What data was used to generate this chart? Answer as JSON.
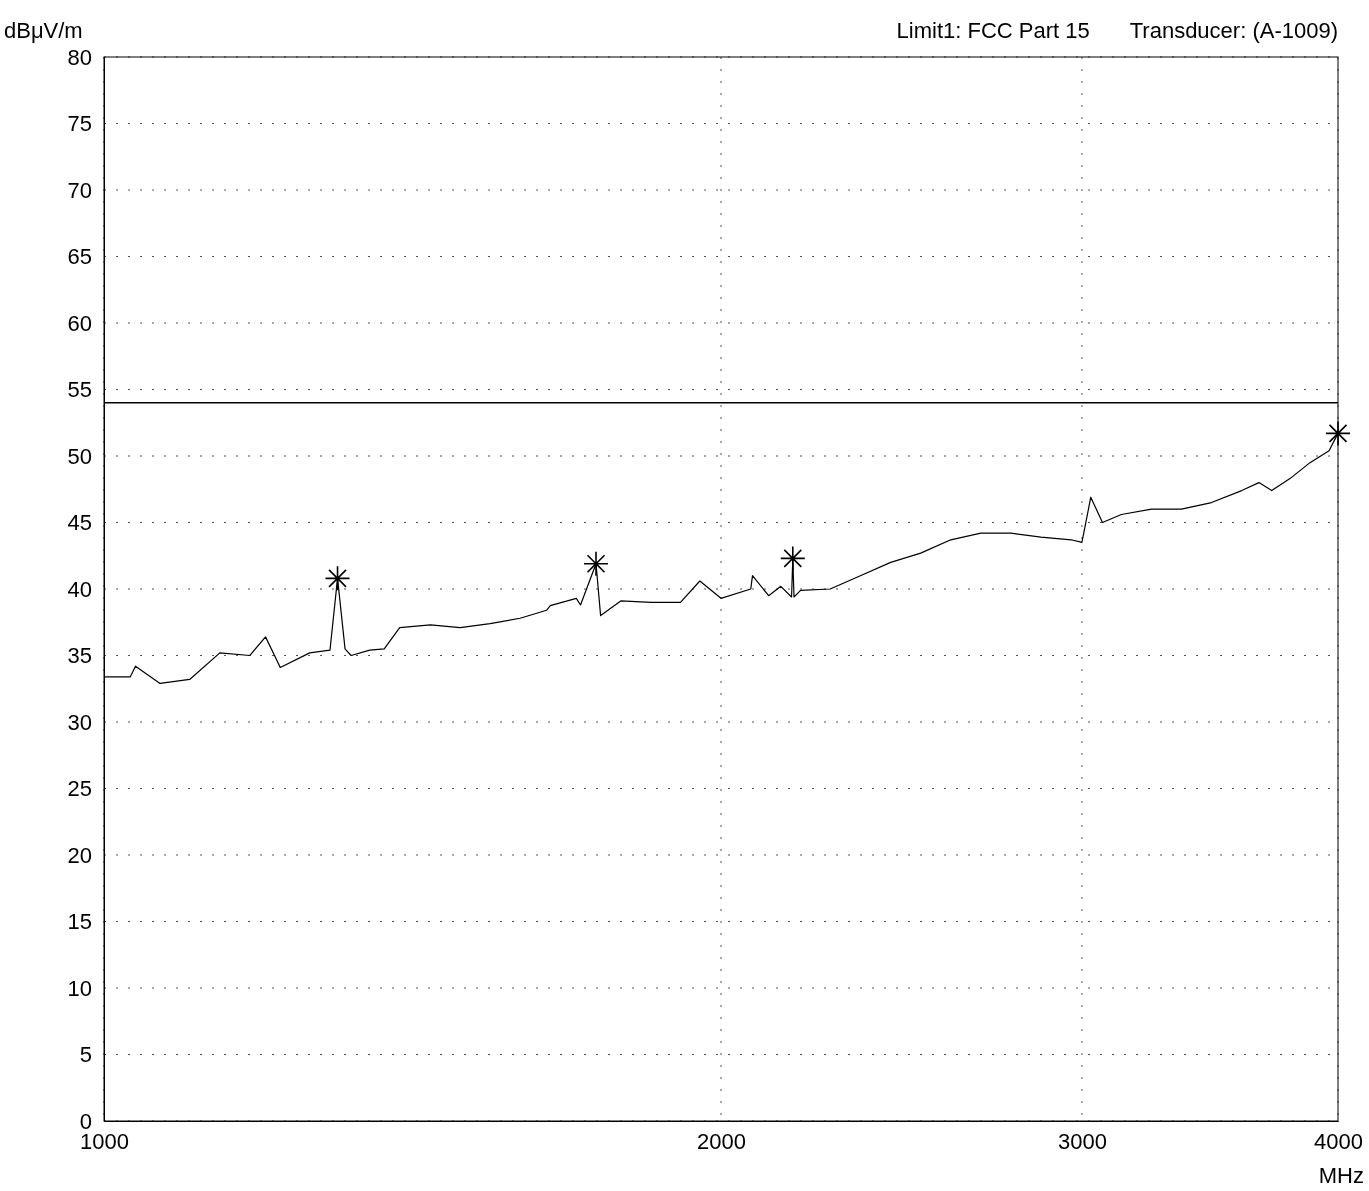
{
  "chart_data": {
    "type": "line",
    "xlabel": "MHz",
    "ylabel": "dBμV/m",
    "log": "x",
    "grid": true,
    "xlim": [
      1000,
      4000
    ],
    "xticks": [
      1000,
      2000,
      3000,
      4000
    ],
    "ylim": [
      0,
      80
    ],
    "yticks": [
      0,
      5,
      10,
      15,
      20,
      25,
      30,
      35,
      40,
      45,
      50,
      55,
      60,
      65,
      70,
      75,
      80
    ],
    "annotations": [
      "Limit1: FCC Part 15",
      "Transducer: (A-1009)"
    ],
    "ref_lines": [
      {
        "axis": "y",
        "value": 54,
        "color": "#000000",
        "line_style": "solid"
      }
    ],
    "series": [
      {
        "color": "#000000",
        "marker": "none",
        "line_style": "solid",
        "x": [
          1000,
          1030,
          1036,
          1065,
          1101,
          1139,
          1178,
          1199,
          1219,
          1260,
          1289,
          1300,
          1311,
          1320,
          1348,
          1370,
          1394,
          1443,
          1492,
          1543,
          1596,
          1644,
          1651,
          1700,
          1708,
          1738,
          1747,
          1787,
          1849,
          1911,
          1953,
          2000,
          2068,
          2072,
          2110,
          2139,
          2165,
          2168,
          2171,
          2187,
          2261,
          2339,
          2420,
          2503,
          2589,
          2678,
          2770,
          2865,
          2964,
          3000,
          3030,
          3070,
          3136,
          3244,
          3355,
          3470,
          3590,
          3660,
          3713,
          3790,
          3876,
          3960,
          4000
        ],
        "values": [
          33.4,
          33.4,
          34.2,
          32.9,
          33.2,
          35.2,
          35,
          36.4,
          34.1,
          35.2,
          35.4,
          40.8,
          35.5,
          35,
          35.4,
          35.5,
          37.1,
          37.3,
          37.1,
          37.4,
          37.8,
          38.4,
          38.75,
          39.3,
          38.8,
          41.9,
          38,
          39.1,
          39,
          39,
          40.6,
          39.3,
          40,
          41,
          39.5,
          40.2,
          39.4,
          42.3,
          39.4,
          39.9,
          40,
          41,
          42,
          42.7,
          43.7,
          44.2,
          44.2,
          43.9,
          43.7,
          43.5,
          46.9,
          45,
          45.6,
          46,
          46,
          46.5,
          47.4,
          48,
          47.4,
          48.3,
          49.5,
          50.4,
          51.7
        ]
      },
      {
        "type": "scatter",
        "color": "#000000",
        "marker": "cross",
        "x": [
          1300,
          1738,
          2168,
          4000
        ],
        "values": [
          40.8,
          41.9,
          42.3,
          51.7
        ]
      }
    ]
  }
}
